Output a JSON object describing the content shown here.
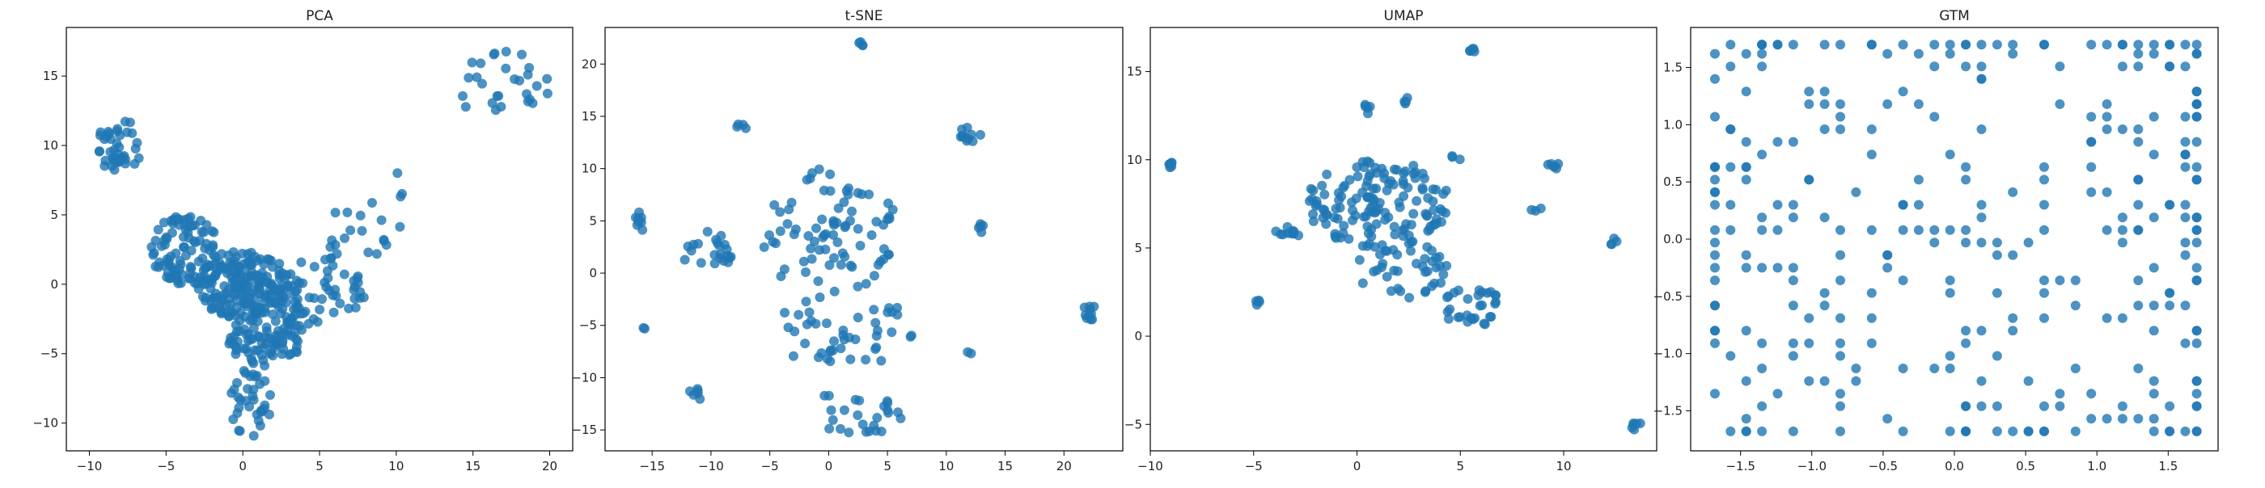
{
  "figure": {
    "title": ""
  },
  "chart_data": [
    {
      "id": "pca",
      "type": "scatter",
      "title": "PCA",
      "xlim": [
        -11.5,
        21.5
      ],
      "ylim": [
        -12,
        18.5
      ],
      "xticks": [
        -10,
        -5,
        0,
        5,
        10,
        15,
        20
      ],
      "yticks": [
        -10,
        -5,
        0,
        5,
        10,
        15
      ],
      "color": "#1f77b4",
      "grid": false,
      "clusters": [
        {
          "x": [
            -9.5,
            -6.5
          ],
          "y": [
            8.0,
            12.0
          ],
          "n": 40
        },
        {
          "x": [
            -6.0,
            -1.5
          ],
          "y": [
            0.0,
            5.0
          ],
          "n": 90
        },
        {
          "x": [
            -3.0,
            3.0
          ],
          "y": [
            -2.5,
            2.5
          ],
          "n": 180
        },
        {
          "x": [
            -1.0,
            4.0
          ],
          "y": [
            -6.0,
            -1.5
          ],
          "n": 90
        },
        {
          "x": [
            -1.0,
            2.0
          ],
          "y": [
            -11.0,
            -6.0
          ],
          "n": 35
        },
        {
          "x": [
            2.0,
            8.0
          ],
          "y": [
            -3.0,
            2.0
          ],
          "n": 60
        },
        {
          "x": [
            5.0,
            10.5
          ],
          "y": [
            1.5,
            6.0
          ],
          "n": 18
        },
        {
          "x": [
            14.0,
            20.0
          ],
          "y": [
            11.5,
            17.0
          ],
          "n": 28
        },
        {
          "x": [
            10.0,
            10.5
          ],
          "y": [
            5.5,
            9.5
          ],
          "n": 3
        }
      ]
    },
    {
      "id": "tsne",
      "type": "scatter",
      "title": "t-SNE",
      "xlim": [
        -19,
        25
      ],
      "ylim": [
        -17,
        23.5
      ],
      "xticks": [
        -15,
        -10,
        -5,
        0,
        5,
        10,
        15,
        20
      ],
      "yticks": [
        -15,
        -10,
        -5,
        0,
        5,
        10,
        15,
        20
      ],
      "color": "#1f77b4",
      "grid": false,
      "clusters": [
        {
          "x": [
            -16.5,
            -15.5
          ],
          "y": [
            4.0,
            6.0
          ],
          "n": 8
        },
        {
          "x": [
            -12.5,
            -8.0
          ],
          "y": [
            0.0,
            4.0
          ],
          "n": 22
        },
        {
          "x": [
            -6.0,
            6.0
          ],
          "y": [
            -2.0,
            10.0
          ],
          "n": 80
        },
        {
          "x": [
            -5.0,
            8.0
          ],
          "y": [
            -9.0,
            -2.0
          ],
          "n": 45
        },
        {
          "x": [
            -2.0,
            7.0
          ],
          "y": [
            -15.5,
            -11.0
          ],
          "n": 25
        },
        {
          "x": [
            11.0,
            13.0
          ],
          "y": [
            12.5,
            14.0
          ],
          "n": 12
        },
        {
          "x": [
            12.5,
            13.5
          ],
          "y": [
            3.8,
            4.8
          ],
          "n": 5
        },
        {
          "x": [
            21.5,
            23.0
          ],
          "y": [
            -4.8,
            -3.0
          ],
          "n": 10
        },
        {
          "x": [
            2.5,
            3.0
          ],
          "y": [
            21.5,
            22.2
          ],
          "n": 4
        },
        {
          "x": [
            -12.0,
            -10.5
          ],
          "y": [
            -12.5,
            -11.0
          ],
          "n": 6
        },
        {
          "x": [
            -16.0,
            -15.5
          ],
          "y": [
            -5.5,
            -5.0
          ],
          "n": 2
        },
        {
          "x": [
            -8.0,
            -7.0
          ],
          "y": [
            13.5,
            14.3
          ],
          "n": 4
        },
        {
          "x": [
            11.5,
            12.5
          ],
          "y": [
            -8.0,
            -7.5
          ],
          "n": 2
        }
      ]
    },
    {
      "id": "umap",
      "type": "scatter",
      "title": "UMAP",
      "xlim": [
        -10,
        14.5
      ],
      "ylim": [
        -6.5,
        17.5
      ],
      "xticks": [
        -10,
        -5,
        0,
        5,
        10
      ],
      "yticks": [
        -5,
        0,
        5,
        10,
        15
      ],
      "color": "#1f77b4",
      "grid": false,
      "clusters": [
        {
          "x": [
            -9.2,
            -8.9
          ],
          "y": [
            9.5,
            9.9
          ],
          "n": 6
        },
        {
          "x": [
            -5.0,
            -4.7
          ],
          "y": [
            1.7,
            2.1
          ],
          "n": 4
        },
        {
          "x": [
            -4.0,
            -2.5
          ],
          "y": [
            5.5,
            6.2
          ],
          "n": 10
        },
        {
          "x": [
            -2.5,
            4.5
          ],
          "y": [
            5.0,
            10.0
          ],
          "n": 140
        },
        {
          "x": [
            0.0,
            4.5
          ],
          "y": [
            2.0,
            5.5
          ],
          "n": 40
        },
        {
          "x": [
            4.0,
            7.0
          ],
          "y": [
            0.5,
            3.0
          ],
          "n": 30
        },
        {
          "x": [
            5.3,
            5.9
          ],
          "y": [
            15.9,
            16.5
          ],
          "n": 5
        },
        {
          "x": [
            0.0,
            0.8
          ],
          "y": [
            12.5,
            13.2
          ],
          "n": 5
        },
        {
          "x": [
            2.0,
            2.6
          ],
          "y": [
            13.1,
            13.6
          ],
          "n": 4
        },
        {
          "x": [
            4.5,
            5.0
          ],
          "y": [
            9.8,
            10.3
          ],
          "n": 3
        },
        {
          "x": [
            8.3,
            9.0
          ],
          "y": [
            7.0,
            7.3
          ],
          "n": 3
        },
        {
          "x": [
            9.2,
            9.8
          ],
          "y": [
            9.4,
            9.9
          ],
          "n": 6
        },
        {
          "x": [
            12.0,
            12.6
          ],
          "y": [
            5.2,
            5.6
          ],
          "n": 4
        },
        {
          "x": [
            13.3,
            13.8
          ],
          "y": [
            -5.4,
            -4.8
          ],
          "n": 6
        }
      ]
    },
    {
      "id": "gtm",
      "type": "scatter",
      "title": "GTM",
      "xlim": [
        -1.85,
        1.85
      ],
      "ylim": [
        -1.85,
        1.85
      ],
      "xticks": [
        -1.5,
        -1.0,
        -0.5,
        0.0,
        0.5,
        1.0,
        1.5
      ],
      "yticks": [
        -1.5,
        -1.0,
        -0.5,
        0.0,
        0.5,
        1.0,
        1.5
      ],
      "xtick_labels": [
        "−1.5",
        "−1.0",
        "−0.5",
        "0.0",
        "0.5",
        "1.0",
        "1.5"
      ],
      "ytick_labels": [
        "−1.5",
        "−1.0",
        "−0.5",
        "0.0",
        "0.5",
        "1.0",
        "1.5"
      ],
      "color": "#1f77b4",
      "grid": false,
      "grid_points": true,
      "grid_levels": [
        -1.68,
        -1.57,
        -1.46,
        -1.35,
        -1.24,
        -1.13,
        -1.02,
        -0.91,
        -0.8,
        -0.69,
        -0.58,
        -0.47,
        -0.36,
        -0.25,
        -0.14,
        -0.03,
        0.08,
        0.19,
        0.3,
        0.41,
        0.52,
        0.63,
        0.74,
        0.85,
        0.96,
        1.07,
        1.18,
        1.29,
        1.4,
        1.51,
        1.62,
        1.7
      ],
      "point_count": 320
    }
  ]
}
